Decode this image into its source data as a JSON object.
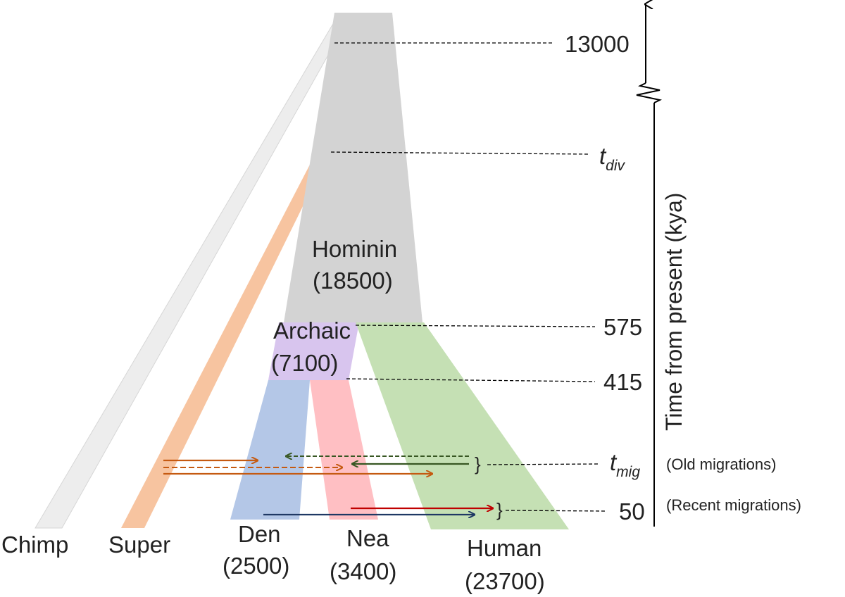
{
  "colors": {
    "chimp": "#ededed",
    "super": "#f7c4a0",
    "hominin": "#d3d3d3",
    "archaic": "#d8c5ee",
    "den": "#b4c7e7",
    "nea": "#ffbfc3",
    "human": "#c5e0b4",
    "arrow_orange": "#c55a11",
    "arrow_green": "#385723",
    "arrow_red": "#c00000",
    "arrow_blue": "#1f3864"
  },
  "populations": {
    "chimp": "Chimp",
    "super": "Super",
    "hominin": {
      "name": "Hominin",
      "size": "(18500)"
    },
    "archaic": {
      "name": "Archaic",
      "size": "(7100)"
    },
    "den": {
      "name": "Den",
      "size": "(2500)"
    },
    "nea": {
      "name": "Nea",
      "size": "(3400)"
    },
    "human": {
      "name": "Human",
      "size": "(23700)"
    }
  },
  "times": {
    "t13000": "13000",
    "t_div": {
      "main": "t",
      "sub": "div"
    },
    "t575": "575",
    "t415": "415",
    "t_mig": {
      "main": "t",
      "sub": "mig"
    },
    "t50": "50"
  },
  "annotations": {
    "old": "(Old migrations)",
    "recent": "(Recent migrations)",
    "brace": "}"
  },
  "axis": {
    "title": "Time from present (kya)",
    "direction_icon": "arrow-up-icon",
    "break_icon": "axis-break-icon"
  }
}
